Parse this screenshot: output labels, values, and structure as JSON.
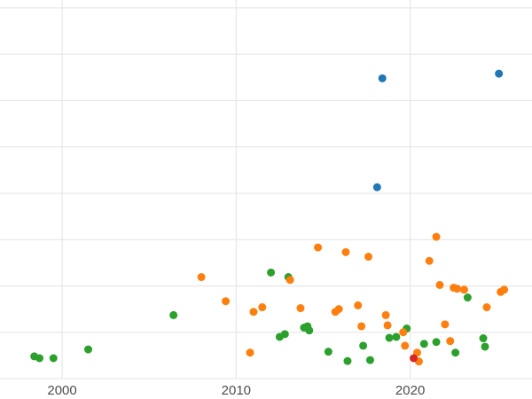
{
  "chart_data": {
    "type": "scatter",
    "title": "",
    "xlabel": "",
    "ylabel": "",
    "grid": true,
    "legend": "none",
    "background_color": "#ffffff",
    "gridline_color": "#e3e3e3",
    "tick_label_color": "#4d4d4d",
    "xlim": [
      1996.43,
      2027.0
    ],
    "ylim": [
      0,
      8.17
    ],
    "x_ticks": [
      {
        "label": "2000",
        "value": 2000
      },
      {
        "label": "2010",
        "value": 2010
      },
      {
        "label": "2020",
        "value": 2020
      }
    ],
    "y_gridline_values": [
      0,
      1,
      2,
      3,
      4,
      5,
      6,
      7,
      8
    ],
    "series": [
      {
        "name": "green-series",
        "color": "#2ca02c",
        "points": [
          [
            1998.4,
            0.48
          ],
          [
            1998.7,
            0.44
          ],
          [
            1999.5,
            0.44
          ],
          [
            2001.5,
            0.63
          ],
          [
            2006.4,
            1.37
          ],
          [
            2012.0,
            2.29
          ],
          [
            2012.5,
            0.9
          ],
          [
            2012.8,
            0.96
          ],
          [
            2013.0,
            2.19
          ],
          [
            2013.9,
            1.1
          ],
          [
            2014.1,
            1.13
          ],
          [
            2014.2,
            1.04
          ],
          [
            2015.3,
            0.58
          ],
          [
            2016.4,
            0.38
          ],
          [
            2017.3,
            0.71
          ],
          [
            2017.7,
            0.4
          ],
          [
            2018.8,
            0.88
          ],
          [
            2019.2,
            0.9
          ],
          [
            2019.8,
            1.08
          ],
          [
            2020.8,
            0.75
          ],
          [
            2021.5,
            0.79
          ],
          [
            2022.6,
            0.56
          ],
          [
            2023.3,
            1.75
          ],
          [
            2024.2,
            0.87
          ],
          [
            2024.3,
            0.69
          ]
        ]
      },
      {
        "name": "orange-series",
        "color": "#ff7f0e",
        "points": [
          [
            2008.0,
            2.19
          ],
          [
            2009.4,
            1.67
          ],
          [
            2010.8,
            0.56
          ],
          [
            2011.0,
            1.44
          ],
          [
            2011.5,
            1.54
          ],
          [
            2013.1,
            2.13
          ],
          [
            2013.7,
            1.52
          ],
          [
            2014.7,
            2.83
          ],
          [
            2015.7,
            1.44
          ],
          [
            2015.9,
            1.5
          ],
          [
            2016.3,
            2.73
          ],
          [
            2017.0,
            1.58
          ],
          [
            2017.2,
            1.13
          ],
          [
            2017.6,
            2.63
          ],
          [
            2018.6,
            1.37
          ],
          [
            2018.7,
            1.15
          ],
          [
            2019.6,
            1.0
          ],
          [
            2019.7,
            0.71
          ],
          [
            2020.4,
            0.56
          ],
          [
            2020.5,
            0.37
          ],
          [
            2021.1,
            2.54
          ],
          [
            2021.5,
            3.06
          ],
          [
            2021.7,
            2.02
          ],
          [
            2022.0,
            1.17
          ],
          [
            2022.3,
            0.81
          ],
          [
            2022.5,
            1.96
          ],
          [
            2022.7,
            1.94
          ],
          [
            2023.1,
            1.92
          ],
          [
            2024.4,
            1.54
          ],
          [
            2025.2,
            1.87
          ],
          [
            2025.4,
            1.92
          ]
        ]
      },
      {
        "name": "blue-series",
        "color": "#1f77b4",
        "points": [
          [
            2018.1,
            4.13
          ],
          [
            2018.4,
            6.48
          ],
          [
            2025.1,
            6.58
          ]
        ]
      },
      {
        "name": "red-series",
        "color": "#d62728",
        "points": [
          [
            2020.2,
            0.44
          ]
        ]
      }
    ]
  }
}
